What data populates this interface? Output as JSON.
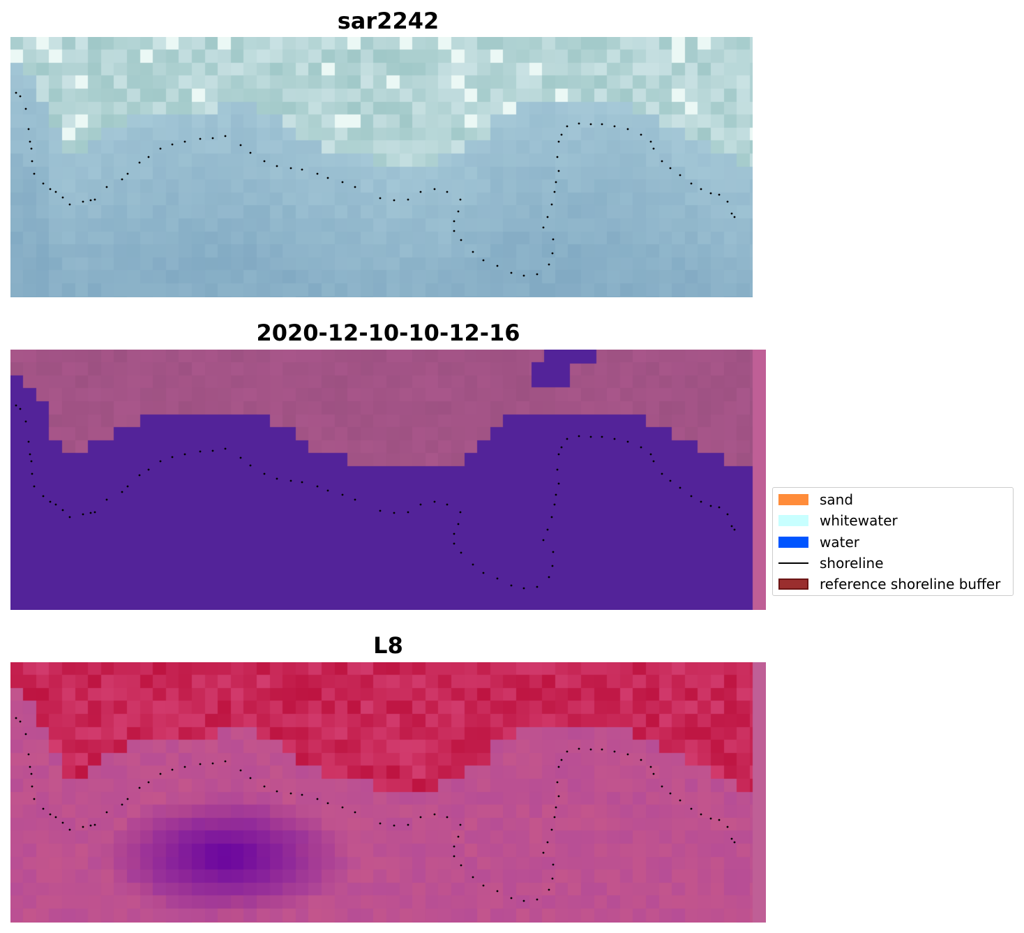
{
  "panels": [
    {
      "title": "sar2242",
      "style": "sar",
      "has_mask": false,
      "side_strip": false
    },
    {
      "title": "2020-12-10-10-12-16",
      "style": "classified",
      "has_mask": true,
      "side_strip": true,
      "colors": {
        "land": "#a8568a",
        "water": "#532399",
        "strip": "#bf5f96"
      }
    },
    {
      "title": "L8",
      "style": "l8",
      "has_mask": false,
      "side_strip": true,
      "colors": {
        "strip": "#bf5f96"
      }
    }
  ],
  "legend": {
    "items": [
      {
        "label": "sand",
        "kind": "patch",
        "color": "#ff8c3a"
      },
      {
        "label": "whitewater",
        "kind": "patch",
        "color": "#c8ffff"
      },
      {
        "label": "water",
        "kind": "patch",
        "color": "#0055ff"
      },
      {
        "label": "shoreline",
        "kind": "line",
        "color": "#000000"
      },
      {
        "label": "reference shoreline buffer",
        "kind": "patch",
        "color": "#9a2e2e",
        "edge": "#6b1414"
      }
    ]
  }
}
